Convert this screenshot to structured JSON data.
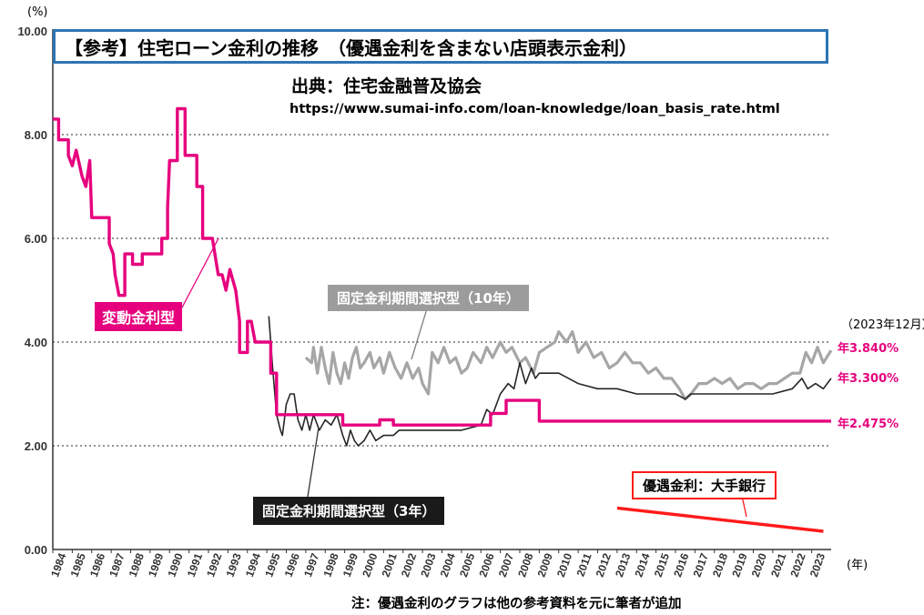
{
  "chart_data": {
    "type": "line",
    "title": "【参考】住宅ローン金利の推移　（優遇金利を含まない店頭表示金利）",
    "source_label": "出典：住宅金融普及協会",
    "source_url": "https://www.sumai-info.com/loan-knowledge/loan_basis_rate.html",
    "ylabel": "(%)",
    "xlabel": "(年)",
    "ylim": [
      0,
      10
    ],
    "xlim": [
      1984,
      2024
    ],
    "yticks": [
      "0.00",
      "2.00",
      "4.00",
      "6.00",
      "8.00",
      "10.00"
    ],
    "xticks": [
      "1984",
      "1985",
      "1986",
      "1987",
      "1988",
      "1989",
      "1990",
      "1991",
      "1992",
      "1993",
      "1994",
      "1995",
      "1996",
      "1997",
      "1998",
      "1999",
      "2000",
      "2001",
      "2002",
      "2003",
      "2004",
      "2005",
      "2006",
      "2007",
      "2008",
      "2009",
      "2010",
      "2011",
      "2012",
      "2013",
      "2014",
      "2015",
      "2016",
      "2017",
      "2018",
      "2019",
      "2020",
      "2021",
      "2022",
      "2023"
    ],
    "grid": "horizontal-dotted",
    "date_note": "（2023年12月）",
    "footnote": "注：優遇金利のグラフは他の参考資料を元に筆者が追加",
    "series": [
      {
        "name": "変動金利型",
        "color": "#e6007e",
        "end_label": "年2.475%",
        "points": [
          [
            1984.0,
            8.3
          ],
          [
            1984.3,
            8.3
          ],
          [
            1984.3,
            7.9
          ],
          [
            1984.8,
            7.9
          ],
          [
            1984.8,
            7.6
          ],
          [
            1985.0,
            7.4
          ],
          [
            1985.2,
            7.7
          ],
          [
            1985.5,
            7.2
          ],
          [
            1985.7,
            7.0
          ],
          [
            1985.9,
            7.5
          ],
          [
            1986.0,
            6.4
          ],
          [
            1986.9,
            6.4
          ],
          [
            1986.9,
            5.9
          ],
          [
            1987.1,
            5.7
          ],
          [
            1987.2,
            5.3
          ],
          [
            1987.4,
            4.9
          ],
          [
            1987.7,
            4.9
          ],
          [
            1987.7,
            5.7
          ],
          [
            1988.1,
            5.7
          ],
          [
            1988.1,
            5.5
          ],
          [
            1988.6,
            5.5
          ],
          [
            1988.6,
            5.7
          ],
          [
            1989.6,
            5.7
          ],
          [
            1989.6,
            6.0
          ],
          [
            1989.9,
            6.0
          ],
          [
            1989.9,
            6.6
          ],
          [
            1990.0,
            7.5
          ],
          [
            1990.4,
            7.5
          ],
          [
            1990.4,
            8.5
          ],
          [
            1990.8,
            8.5
          ],
          [
            1990.8,
            7.6
          ],
          [
            1991.4,
            7.6
          ],
          [
            1991.4,
            7.0
          ],
          [
            1991.7,
            7.0
          ],
          [
            1991.7,
            6.0
          ],
          [
            1992.2,
            6.0
          ],
          [
            1992.5,
            5.3
          ],
          [
            1992.7,
            5.3
          ],
          [
            1992.9,
            5.0
          ],
          [
            1993.1,
            5.4
          ],
          [
            1993.4,
            5.0
          ],
          [
            1993.6,
            4.4
          ],
          [
            1993.6,
            3.8
          ],
          [
            1994.0,
            3.8
          ],
          [
            1994.0,
            4.4
          ],
          [
            1994.2,
            4.4
          ],
          [
            1994.4,
            4.0
          ],
          [
            1995.2,
            4.0
          ],
          [
            1995.2,
            3.4
          ],
          [
            1995.5,
            3.4
          ],
          [
            1995.5,
            2.6
          ],
          [
            1998.9,
            2.6
          ],
          [
            1998.9,
            2.4
          ],
          [
            2000.8,
            2.4
          ],
          [
            2000.8,
            2.5
          ],
          [
            2001.5,
            2.5
          ],
          [
            2001.5,
            2.4
          ],
          [
            2006.5,
            2.4
          ],
          [
            2006.5,
            2.625
          ],
          [
            2007.3,
            2.625
          ],
          [
            2007.3,
            2.875
          ],
          [
            2009.0,
            2.875
          ],
          [
            2009.0,
            2.475
          ],
          [
            2024.0,
            2.475
          ]
        ]
      },
      {
        "name": "固定金利期間選択型（10年）",
        "color": "#a6a6a6",
        "end_label": "年3.840%",
        "points": [
          [
            1997.0,
            3.7
          ],
          [
            1997.3,
            3.6
          ],
          [
            1997.4,
            3.9
          ],
          [
            1997.6,
            3.4
          ],
          [
            1997.8,
            3.9
          ],
          [
            1998.0,
            3.5
          ],
          [
            1998.2,
            3.2
          ],
          [
            1998.4,
            3.8
          ],
          [
            1998.6,
            3.4
          ],
          [
            1998.8,
            3.2
          ],
          [
            1999.0,
            3.6
          ],
          [
            1999.2,
            3.3
          ],
          [
            1999.4,
            3.7
          ],
          [
            1999.6,
            3.9
          ],
          [
            1999.8,
            3.5
          ],
          [
            2000.0,
            3.6
          ],
          [
            2000.3,
            3.8
          ],
          [
            2000.5,
            3.5
          ],
          [
            2000.8,
            3.7
          ],
          [
            2001.0,
            3.4
          ],
          [
            2001.3,
            3.8
          ],
          [
            2001.6,
            3.5
          ],
          [
            2001.9,
            3.3
          ],
          [
            2002.2,
            3.6
          ],
          [
            2002.5,
            3.3
          ],
          [
            2002.8,
            3.5
          ],
          [
            2003.0,
            3.2
          ],
          [
            2003.3,
            3.0
          ],
          [
            2003.5,
            3.8
          ],
          [
            2003.8,
            3.6
          ],
          [
            2004.1,
            3.9
          ],
          [
            2004.4,
            3.6
          ],
          [
            2004.7,
            3.7
          ],
          [
            2005.0,
            3.4
          ],
          [
            2005.3,
            3.5
          ],
          [
            2005.6,
            3.8
          ],
          [
            2006.0,
            3.6
          ],
          [
            2006.3,
            3.9
          ],
          [
            2006.6,
            3.7
          ],
          [
            2007.0,
            4.0
          ],
          [
            2007.3,
            3.8
          ],
          [
            2007.6,
            3.9
          ],
          [
            2008.0,
            3.6
          ],
          [
            2008.3,
            3.7
          ],
          [
            2008.7,
            3.4
          ],
          [
            2009.0,
            3.8
          ],
          [
            2009.4,
            3.9
          ],
          [
            2009.8,
            4.0
          ],
          [
            2010.0,
            4.2
          ],
          [
            2010.4,
            4.0
          ],
          [
            2010.7,
            4.2
          ],
          [
            2011.0,
            3.8
          ],
          [
            2011.4,
            4.0
          ],
          [
            2011.8,
            3.7
          ],
          [
            2012.2,
            3.8
          ],
          [
            2012.6,
            3.5
          ],
          [
            2013.0,
            3.6
          ],
          [
            2013.4,
            3.8
          ],
          [
            2013.8,
            3.6
          ],
          [
            2014.2,
            3.6
          ],
          [
            2014.6,
            3.4
          ],
          [
            2015.0,
            3.5
          ],
          [
            2015.4,
            3.3
          ],
          [
            2015.8,
            3.3
          ],
          [
            2016.2,
            3.1
          ],
          [
            2016.5,
            2.9
          ],
          [
            2016.8,
            3.0
          ],
          [
            2017.2,
            3.2
          ],
          [
            2017.6,
            3.2
          ],
          [
            2018.0,
            3.3
          ],
          [
            2018.4,
            3.2
          ],
          [
            2018.8,
            3.3
          ],
          [
            2019.2,
            3.1
          ],
          [
            2019.6,
            3.2
          ],
          [
            2020.0,
            3.2
          ],
          [
            2020.4,
            3.1
          ],
          [
            2020.8,
            3.2
          ],
          [
            2021.2,
            3.2
          ],
          [
            2021.6,
            3.3
          ],
          [
            2022.0,
            3.4
          ],
          [
            2022.4,
            3.4
          ],
          [
            2022.7,
            3.8
          ],
          [
            2023.0,
            3.6
          ],
          [
            2023.3,
            3.9
          ],
          [
            2023.6,
            3.6
          ],
          [
            2024.0,
            3.84
          ]
        ]
      },
      {
        "name": "固定金利期間選択型（3年）",
        "color": "#262626",
        "end_label": "年3.300%",
        "points": [
          [
            1995.1,
            4.5
          ],
          [
            1995.3,
            3.5
          ],
          [
            1995.5,
            2.6
          ],
          [
            1995.7,
            2.3
          ],
          [
            1995.8,
            2.2
          ],
          [
            1996.0,
            2.8
          ],
          [
            1996.2,
            3.0
          ],
          [
            1996.4,
            3.0
          ],
          [
            1996.6,
            2.5
          ],
          [
            1996.8,
            2.3
          ],
          [
            1997.0,
            2.6
          ],
          [
            1997.2,
            2.3
          ],
          [
            1997.4,
            2.6
          ],
          [
            1997.7,
            2.3
          ],
          [
            1998.0,
            2.5
          ],
          [
            1998.3,
            2.4
          ],
          [
            1998.6,
            2.6
          ],
          [
            1998.9,
            2.2
          ],
          [
            1999.1,
            2.0
          ],
          [
            1999.3,
            2.3
          ],
          [
            1999.5,
            2.1
          ],
          [
            1999.7,
            2.0
          ],
          [
            2000.0,
            2.1
          ],
          [
            2000.3,
            2.3
          ],
          [
            2000.6,
            2.1
          ],
          [
            2001.0,
            2.2
          ],
          [
            2001.5,
            2.2
          ],
          [
            2001.8,
            2.3
          ],
          [
            2002.5,
            2.3
          ],
          [
            2003.5,
            2.3
          ],
          [
            2005.0,
            2.3
          ],
          [
            2006.0,
            2.4
          ],
          [
            2006.3,
            2.7
          ],
          [
            2006.6,
            2.6
          ],
          [
            2007.0,
            3.0
          ],
          [
            2007.4,
            3.2
          ],
          [
            2007.7,
            3.1
          ],
          [
            2008.0,
            3.6
          ],
          [
            2008.3,
            3.2
          ],
          [
            2008.6,
            3.5
          ],
          [
            2008.8,
            3.3
          ],
          [
            2009.0,
            3.4
          ],
          [
            2010.0,
            3.4
          ],
          [
            2011.0,
            3.2
          ],
          [
            2012.0,
            3.1
          ],
          [
            2013.0,
            3.1
          ],
          [
            2014.0,
            3.0
          ],
          [
            2015.0,
            3.0
          ],
          [
            2016.0,
            3.0
          ],
          [
            2016.5,
            2.9
          ],
          [
            2016.8,
            3.0
          ],
          [
            2017.5,
            3.0
          ],
          [
            2018.0,
            3.0
          ],
          [
            2019.0,
            3.0
          ],
          [
            2020.0,
            3.0
          ],
          [
            2021.0,
            3.0
          ],
          [
            2022.0,
            3.1
          ],
          [
            2022.5,
            3.3
          ],
          [
            2022.8,
            3.1
          ],
          [
            2023.2,
            3.2
          ],
          [
            2023.6,
            3.1
          ],
          [
            2024.0,
            3.3
          ]
        ]
      },
      {
        "name": "優遇金利：大手銀行",
        "color": "#ff1a1a",
        "points": [
          [
            2013.0,
            0.8
          ],
          [
            2023.6,
            0.35
          ]
        ]
      }
    ]
  }
}
